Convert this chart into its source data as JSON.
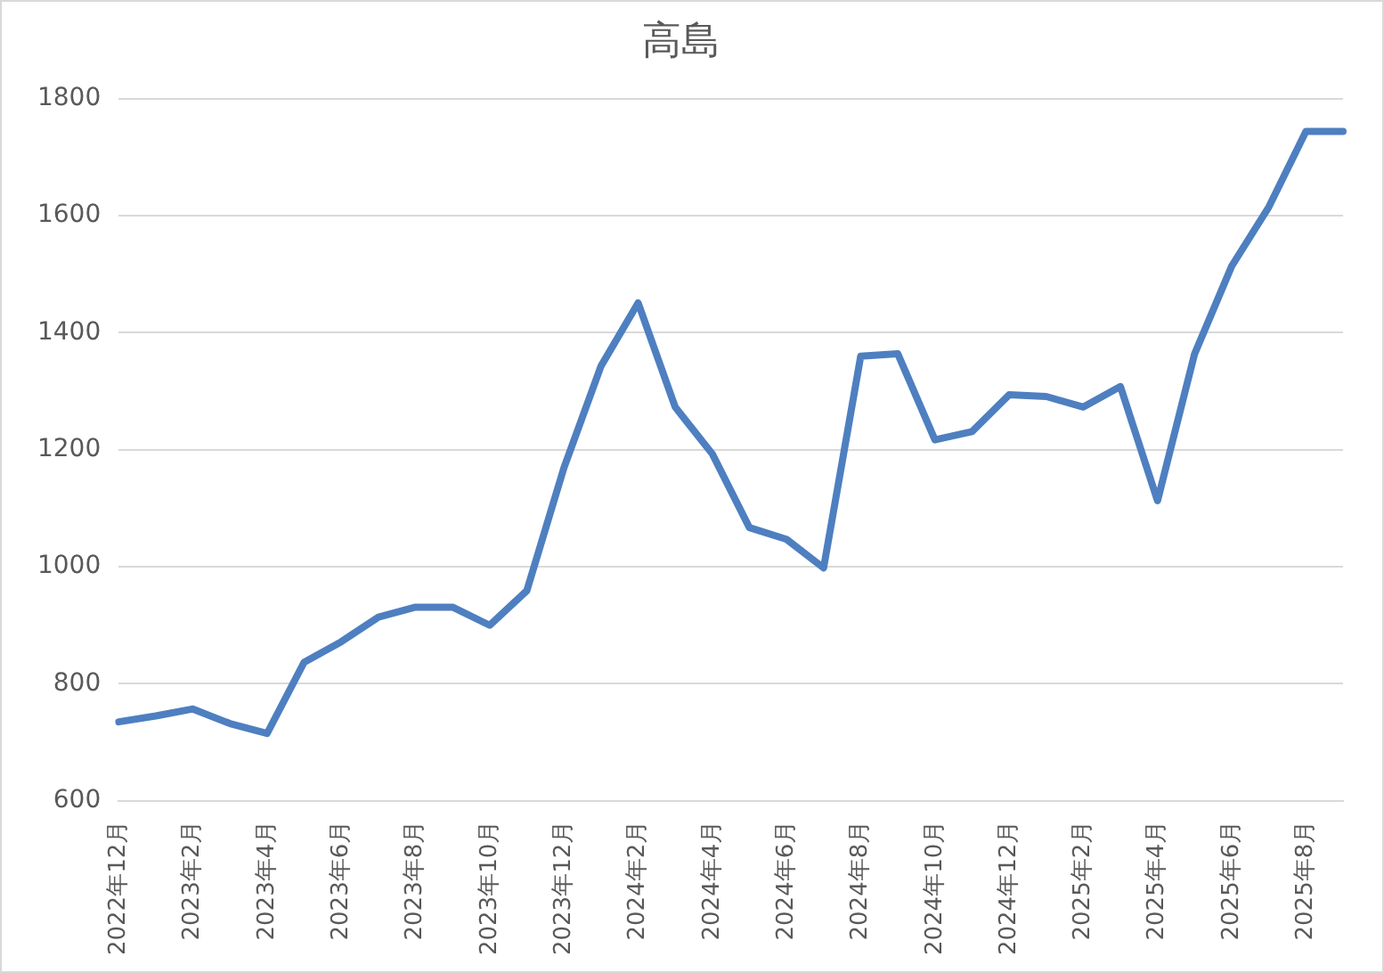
{
  "chart_data": {
    "type": "line",
    "title": "高島",
    "categories": [
      "2022年12月",
      null,
      "2023年2月",
      null,
      "2023年4月",
      null,
      "2023年6月",
      null,
      "2023年8月",
      null,
      "2023年10月",
      null,
      "2023年12月",
      null,
      "2024年2月",
      null,
      "2024年4月",
      null,
      "2024年6月",
      null,
      "2024年8月",
      null,
      "2024年10月",
      null,
      "2024年12月",
      null,
      "2025年2月",
      null,
      "2025年4月",
      null,
      "2025年6月",
      null,
      "2025年8月",
      null
    ],
    "series": [
      {
        "color": "#4e7fc0",
        "values": [
          735,
          745,
          757,
          732,
          715,
          837,
          872,
          914,
          931,
          931,
          900,
          959,
          1169,
          1343,
          1451,
          1273,
          1193,
          1067,
          1047,
          998,
          1360,
          1364,
          1217,
          1231,
          1294,
          1291,
          1273,
          1308,
          1113,
          1364,
          1514,
          1615,
          1744,
          1744
        ]
      }
    ],
    "ylim": [
      600,
      1800
    ],
    "yticks": [
      600,
      800,
      1000,
      1200,
      1400,
      1600,
      1800
    ],
    "grid": "y",
    "legend": false,
    "marker": "none",
    "line_style": "solid"
  }
}
